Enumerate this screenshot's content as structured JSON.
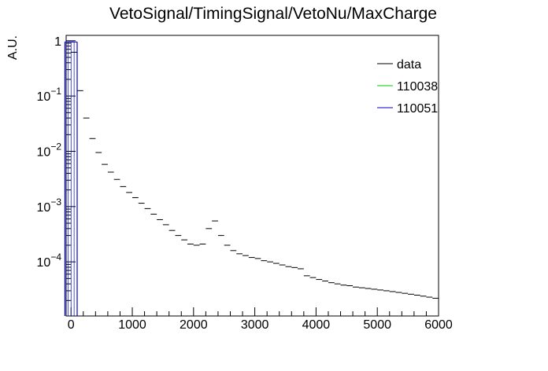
{
  "chart_data": {
    "type": "line",
    "title": "VetoSignal/TimingSignal/VetoNu/MaxCharge",
    "xlabel": "",
    "ylabel": "A.U.",
    "x_scale": "linear",
    "y_scale": "log",
    "xlim": [
      -80,
      6000
    ],
    "ylim": [
      1.05e-05,
      1.25
    ],
    "grid": false,
    "legend_position": "top-right",
    "x_ticks": [
      0,
      1000,
      2000,
      3000,
      4000,
      5000,
      6000
    ],
    "x_tick_labels": [
      "0",
      "1000",
      "2000",
      "3000",
      "4000",
      "5000",
      "6000"
    ],
    "y_ticks": [
      1,
      0.1,
      0.01,
      0.001,
      0.0001
    ],
    "y_tick_labels": [
      {
        "base": "1",
        "exp": ""
      },
      {
        "base": "10",
        "exp": "−1"
      },
      {
        "base": "10",
        "exp": "−2"
      },
      {
        "base": "10",
        "exp": "−3"
      },
      {
        "base": "10",
        "exp": "−4"
      }
    ],
    "bin_width": 100,
    "series": [
      {
        "name": "data",
        "color": "#000000",
        "style": "hist-markers",
        "x": [
          50,
          150,
          250,
          350,
          450,
          550,
          650,
          750,
          850,
          950,
          1050,
          1150,
          1250,
          1350,
          1450,
          1550,
          1650,
          1750,
          1850,
          1950,
          2050,
          2150,
          2250,
          2350,
          2450,
          2550,
          2650,
          2750,
          2850,
          2950,
          3050,
          3150,
          3250,
          3350,
          3450,
          3550,
          3650,
          3750,
          3850,
          3950,
          4050,
          4150,
          4250,
          4350,
          4450,
          4550,
          4650,
          4750,
          4850,
          4950,
          5050,
          5150,
          5250,
          5350,
          5450,
          5550,
          5650,
          5750,
          5850,
          5950
        ],
        "values": [
          0.62,
          0.125,
          0.04,
          0.017,
          0.0095,
          0.0058,
          0.0042,
          0.0031,
          0.0023,
          0.0018,
          0.00145,
          0.00115,
          0.00092,
          0.00073,
          0.00058,
          0.00047,
          0.00037,
          0.0003,
          0.00025,
          0.00021,
          0.0002,
          0.00021,
          0.0004,
          0.00055,
          0.0003,
          0.0002,
          0.00016,
          0.00014,
          0.00013,
          0.00012,
          0.000115,
          0.000105,
          0.0001,
          9.4e-05,
          8.8e-05,
          8.2e-05,
          7.9e-05,
          7.5e-05,
          5.6e-05,
          5.2e-05,
          4.8e-05,
          4.5e-05,
          4.2e-05,
          4e-05,
          3.8e-05,
          3.7e-05,
          3.5e-05,
          3.4e-05,
          3.3e-05,
          3.2e-05,
          3.1e-05,
          3e-05,
          2.9e-05,
          2.8e-05,
          2.7e-05,
          2.6e-05,
          2.5e-05,
          2.4e-05,
          2.3e-05,
          2.2e-05
        ]
      },
      {
        "name": "110038",
        "color": "#00cc00",
        "style": "hist-line",
        "x": [],
        "values": []
      },
      {
        "name": "110051",
        "color": "#0000cc",
        "style": "hist-line",
        "x": [
          -50,
          0,
          50
        ],
        "values": [
          0.95,
          0.95,
          0.95
        ]
      }
    ]
  }
}
